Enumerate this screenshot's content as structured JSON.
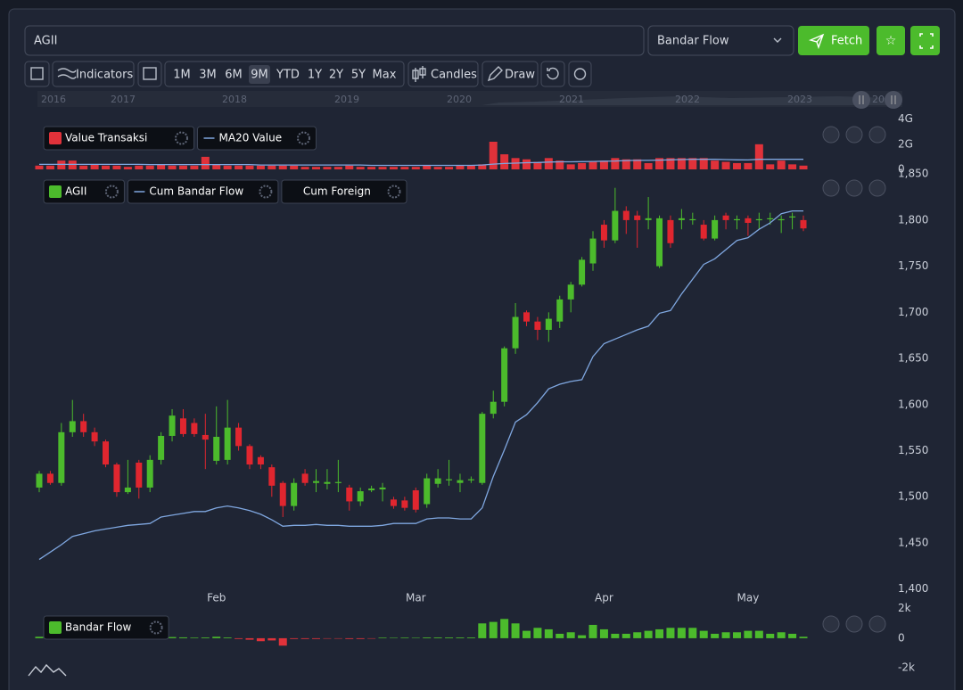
{
  "toolbar": {
    "symbol": "AGII",
    "indicator": "Bandar Flow",
    "fetch": "Fetch",
    "indicators": "Indicators",
    "ranges": [
      "1M",
      "3M",
      "6M",
      "9M",
      "YTD",
      "1Y",
      "2Y",
      "5Y",
      "Max"
    ],
    "chart_style": "Candles",
    "draw": "Draw"
  },
  "navigator": {
    "years": [
      "2016",
      "2017",
      "2018",
      "2019",
      "2020",
      "2021",
      "2022",
      "2023",
      "20"
    ]
  },
  "chart_data": [
    {
      "type": "bar",
      "series": [
        {
          "name": "Value Transaksi",
          "color": "#e0323a",
          "values": [
            0.3,
            0.3,
            0.7,
            0.7,
            0.3,
            0.4,
            0.3,
            0.3,
            0.2,
            0.3,
            0.3,
            0.4,
            0.3,
            0.3,
            0.3,
            1.0,
            0.4,
            0.3,
            0.3,
            0.3,
            0.3,
            0.3,
            0.3,
            0.3,
            0.2,
            0.2,
            0.2,
            0.2,
            0.3,
            0.2,
            0.2,
            0.2,
            0.2,
            0.2,
            0.2,
            0.3,
            0.2,
            0.2,
            0.3,
            0.3,
            0.4,
            2.2,
            1.2,
            0.9,
            0.8,
            0.6,
            0.9,
            0.7,
            0.4,
            0.5,
            0.6,
            0.7,
            0.9,
            0.8,
            0.8,
            0.5,
            0.9,
            0.9,
            0.9,
            0.9,
            0.9,
            0.7,
            0.6,
            0.5,
            0.5,
            2.0,
            0.4,
            0.7,
            0.4,
            0.3
          ]
        },
        {
          "name": "MA20 Value",
          "type": "line",
          "color": "#7fa7e0",
          "values": [
            0.4,
            0.4,
            0.4,
            0.4,
            0.4,
            0.4,
            0.4,
            0.4,
            0.4,
            0.4,
            0.38,
            0.38,
            0.38,
            0.38,
            0.38,
            0.38,
            0.38,
            0.38,
            0.38,
            0.38,
            0.35,
            0.35,
            0.35,
            0.35,
            0.35,
            0.35,
            0.35,
            0.35,
            0.35,
            0.35,
            0.32,
            0.32,
            0.32,
            0.32,
            0.32,
            0.32,
            0.32,
            0.32,
            0.32,
            0.32,
            0.35,
            0.42,
            0.47,
            0.5,
            0.53,
            0.55,
            0.58,
            0.6,
            0.6,
            0.62,
            0.63,
            0.65,
            0.67,
            0.7,
            0.72,
            0.72,
            0.74,
            0.76,
            0.78,
            0.8,
            0.8,
            0.8,
            0.78,
            0.76,
            0.75,
            0.8,
            0.8,
            0.8,
            0.8,
            0.8
          ]
        }
      ],
      "ylim": [
        0,
        4.4
      ],
      "yticks": [
        0,
        {
          "value": 2,
          "label": "2G"
        },
        {
          "value": 4,
          "label": "4G"
        }
      ]
    },
    {
      "type": "candlestick",
      "categories": [
        null,
        null,
        null,
        null,
        null,
        null,
        null,
        null,
        null,
        null,
        null,
        null,
        null,
        null,
        null,
        null,
        "Feb",
        null,
        null,
        null,
        null,
        null,
        null,
        null,
        null,
        null,
        null,
        null,
        null,
        null,
        null,
        null,
        null,
        null,
        "Mar",
        null,
        null,
        null,
        null,
        null,
        null,
        null,
        null,
        null,
        null,
        null,
        null,
        null,
        null,
        null,
        null,
        "Apr",
        null,
        null,
        null,
        null,
        null,
        null,
        null,
        null,
        null,
        null,
        null,
        null,
        "May",
        null,
        null,
        null,
        null,
        null
      ],
      "series": [
        {
          "name": "AGII",
          "up_color": "#4cbb2c",
          "down_color": "#e0262f",
          "open": [
            1510,
            1525,
            1515,
            1570,
            1582,
            1570,
            1560,
            1535,
            1505,
            1537,
            1510,
            1540,
            1566,
            1585,
            1580,
            1567,
            1539,
            1540,
            1575,
            1555,
            1543,
            1532,
            1515,
            1490,
            1525,
            1515,
            1514,
            1515,
            1510,
            1495,
            1507,
            1508,
            1497,
            1496,
            1507,
            1492,
            1514,
            1518,
            1515,
            1518,
            1515,
            1590,
            1603,
            1661,
            1700,
            1690,
            1681,
            1690,
            1714,
            1730,
            1753,
            1795,
            1778,
            1810,
            1805,
            1800,
            1750,
            1800,
            1800,
            1800,
            1795,
            1780,
            1805,
            1800,
            1802,
            1800,
            1801,
            1800,
            1803,
            1800
          ],
          "high": [
            1528,
            1528,
            1580,
            1605,
            1590,
            1575,
            1562,
            1537,
            1540,
            1540,
            1545,
            1570,
            1595,
            1595,
            1585,
            1590,
            1598,
            1605,
            1580,
            1557,
            1545,
            1535,
            1517,
            1520,
            1530,
            1530,
            1530,
            1540,
            1513,
            1510,
            1512,
            1515,
            1500,
            1500,
            1510,
            1525,
            1530,
            1540,
            1525,
            1522,
            1592,
            1615,
            1663,
            1710,
            1702,
            1695,
            1700,
            1718,
            1733,
            1760,
            1788,
            1800,
            1835,
            1815,
            1810,
            1825,
            1805,
            1805,
            1812,
            1808,
            1800,
            1805,
            1808,
            1805,
            1805,
            1808,
            1808,
            1805,
            1808,
            1805
          ],
          "low": [
            1505,
            1513,
            1512,
            1565,
            1565,
            1555,
            1532,
            1500,
            1503,
            1498,
            1505,
            1535,
            1560,
            1565,
            1565,
            1530,
            1535,
            1535,
            1550,
            1530,
            1530,
            1500,
            1478,
            1485,
            1512,
            1505,
            1508,
            1505,
            1485,
            1490,
            1505,
            1495,
            1487,
            1485,
            1483,
            1488,
            1510,
            1512,
            1505,
            1515,
            1513,
            1585,
            1598,
            1655,
            1685,
            1670,
            1668,
            1683,
            1700,
            1728,
            1745,
            1770,
            1775,
            1785,
            1770,
            1790,
            1748,
            1770,
            1790,
            1795,
            1778,
            1778,
            1790,
            1790,
            1783,
            1790,
            1795,
            1786,
            1790,
            1788
          ],
          "close": [
            1525,
            1515,
            1570,
            1582,
            1570,
            1560,
            1535,
            1505,
            1510,
            1510,
            1540,
            1566,
            1588,
            1568,
            1568,
            1562,
            1565,
            1575,
            1555,
            1535,
            1535,
            1512,
            1490,
            1515,
            1515,
            1517,
            1516,
            1516,
            1495,
            1506,
            1509,
            1510,
            1490,
            1488,
            1486,
            1520,
            1520,
            1519,
            1518,
            1519,
            1590,
            1603,
            1661,
            1695,
            1690,
            1681,
            1693,
            1714,
            1730,
            1757,
            1780,
            1778,
            1810,
            1800,
            1800,
            1802,
            1802,
            1775,
            1802,
            1801,
            1780,
            1800,
            1800,
            1801,
            1797,
            1801,
            1802,
            1801,
            1804,
            1791
          ]
        },
        {
          "name": "Cum Bandar Flow",
          "type": "line",
          "color": "#7fa7e0",
          "values": [
            1432,
            1440,
            1448,
            1457,
            1460,
            1463,
            1465,
            1467,
            1469,
            1470,
            1471,
            1478,
            1480,
            1482,
            1484,
            1484,
            1488,
            1490,
            1488,
            1485,
            1481,
            1475,
            1468,
            1469,
            1469,
            1470,
            1469,
            1469,
            1468,
            1468,
            1468,
            1469,
            1471,
            1471,
            1471,
            1476,
            1477,
            1477,
            1476,
            1476,
            1488,
            1522,
            1551,
            1581,
            1589,
            1602,
            1617,
            1622,
            1625,
            1627,
            1652,
            1666,
            1671,
            1676,
            1681,
            1685,
            1699,
            1702,
            1720,
            1736,
            1752,
            1758,
            1768,
            1778,
            1781,
            1790,
            1797,
            1807,
            1810,
            1810
          ]
        },
        {
          "name": "Cum Foreign",
          "type": "line",
          "color": "#000000"
        }
      ],
      "ylim": [
        1391,
        1855
      ],
      "yticks": [
        {
          "value": 1400,
          "label": "1,400"
        },
        {
          "value": 1450,
          "label": "1,450"
        },
        {
          "value": 1500,
          "label": "1,500"
        },
        {
          "value": 1550,
          "label": "1,550"
        },
        {
          "value": 1600,
          "label": "1,600"
        },
        {
          "value": 1650,
          "label": "1,650"
        },
        {
          "value": 1700,
          "label": "1,700"
        },
        {
          "value": 1750,
          "label": "1,750"
        },
        {
          "value": 1800,
          "label": "1,800"
        },
        {
          "value": 1850,
          "label": "1,850"
        }
      ]
    },
    {
      "type": "bar",
      "series": [
        {
          "name": "Bandar Flow",
          "color": "#4cbb2c",
          "negative_color": "#e0323a",
          "values": [
            100,
            50,
            50,
            50,
            30,
            30,
            20,
            20,
            30,
            30,
            40,
            100,
            80,
            60,
            40,
            50,
            100,
            50,
            -50,
            -100,
            -200,
            -150,
            -500,
            -50,
            -50,
            -50,
            -30,
            -30,
            -50,
            -50,
            -30,
            40,
            30,
            40,
            30,
            50,
            50,
            50,
            50,
            50,
            1000,
            1100,
            1300,
            1000,
            500,
            700,
            600,
            300,
            400,
            200,
            900,
            600,
            300,
            300,
            400,
            500,
            600,
            700,
            700,
            700,
            500,
            300,
            400,
            400,
            500,
            500,
            300,
            400,
            300,
            100
          ]
        }
      ],
      "ylim": [
        -2650,
        2400
      ],
      "yticks": [
        {
          "value": -2000,
          "label": "-2k"
        },
        0,
        {
          "value": 2000,
          "label": "2k"
        }
      ]
    }
  ]
}
